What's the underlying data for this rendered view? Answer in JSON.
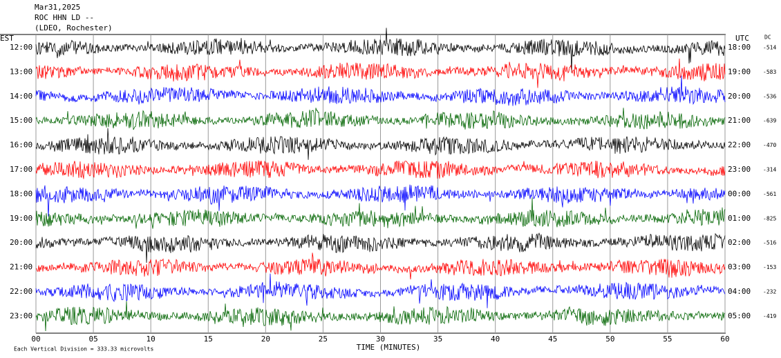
{
  "header": {
    "lines": [
      "Mar31,2025",
      "ROC HHN LD --",
      "(LDEO, Rochester)"
    ]
  },
  "left_title": "EST",
  "right_title": "UTC",
  "dc_title": "DC",
  "rows": [
    {
      "est": "12:00",
      "utc": "18:00",
      "dc": "-514",
      "color": "#000000"
    },
    {
      "est": "13:00",
      "utc": "19:00",
      "dc": "-583",
      "color": "#ff0000"
    },
    {
      "est": "14:00",
      "utc": "20:00",
      "dc": "-536",
      "color": "#0000ff"
    },
    {
      "est": "15:00",
      "utc": "21:00",
      "dc": "-639",
      "color": "#006400"
    },
    {
      "est": "16:00",
      "utc": "22:00",
      "dc": "-470",
      "color": "#000000"
    },
    {
      "est": "17:00",
      "utc": "23:00",
      "dc": "-314",
      "color": "#ff0000"
    },
    {
      "est": "18:00",
      "utc": "00:00",
      "dc": "-561",
      "color": "#0000ff"
    },
    {
      "est": "19:00",
      "utc": "01:00",
      "dc": "-825",
      "color": "#006400"
    },
    {
      "est": "20:00",
      "utc": "02:00",
      "dc": "-516",
      "color": "#000000"
    },
    {
      "est": "21:00",
      "utc": "03:00",
      "dc": "-153",
      "color": "#ff0000"
    },
    {
      "est": "22:00",
      "utc": "04:00",
      "dc": "-232",
      "color": "#0000ff"
    },
    {
      "est": "23:00",
      "utc": "05:00",
      "dc": "-419",
      "color": "#006400"
    }
  ],
  "x_axis": {
    "label": "TIME (MINUTES)",
    "ticks": [
      "00",
      "05",
      "10",
      "15",
      "20",
      "25",
      "30",
      "35",
      "40",
      "45",
      "50",
      "55",
      "60"
    ]
  },
  "footer": "Each Vertical Division =  333.33 microvolts"
}
